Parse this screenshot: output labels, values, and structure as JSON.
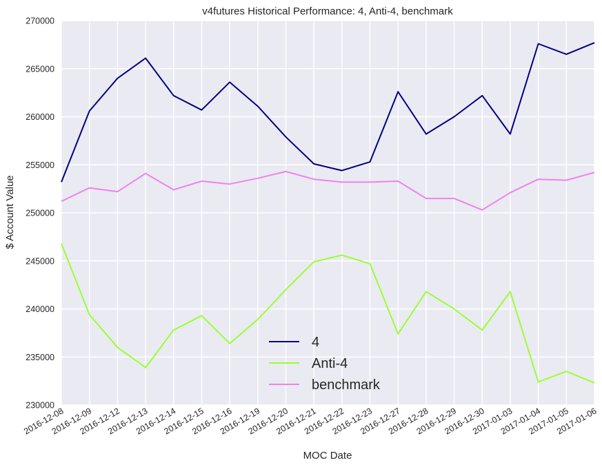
{
  "chart_data": {
    "type": "line",
    "title": "v4futures Historical Performance: 4, Anti-4, benchmark",
    "xlabel": "MOC Date",
    "ylabel": "$ Account Value",
    "ylim": [
      230000,
      270000
    ],
    "y_ticks": [
      "230000",
      "235000",
      "240000",
      "245000",
      "250000",
      "255000",
      "260000",
      "265000",
      "270000"
    ],
    "y_tick_values": [
      230000,
      235000,
      240000,
      245000,
      250000,
      255000,
      260000,
      265000,
      270000
    ],
    "categories": [
      "2016-12-08",
      "2016-12-09",
      "2016-12-12",
      "2016-12-13",
      "2016-12-14",
      "2016-12-15",
      "2016-12-16",
      "2016-12-19",
      "2016-12-20",
      "2016-12-21",
      "2016-12-22",
      "2016-12-23",
      "2016-12-27",
      "2016-12-28",
      "2016-12-29",
      "2016-12-30",
      "2017-01-03",
      "2017-01-04",
      "2017-01-05",
      "2017-01-06"
    ],
    "grid": true,
    "legend_position": "lower-center",
    "background_color": "#EAEAF2",
    "series": [
      {
        "name": "4",
        "color": "#000080",
        "values": [
          253200,
          260600,
          264000,
          266100,
          262200,
          260700,
          263600,
          261100,
          257900,
          255100,
          254400,
          255300,
          262600,
          258200,
          260000,
          262200,
          258200,
          267600,
          266500,
          267700
        ]
      },
      {
        "name": "Anti-4",
        "color": "#9AFF2F",
        "values": [
          246800,
          239400,
          236000,
          233900,
          237800,
          239300,
          236400,
          238900,
          242000,
          244900,
          245600,
          244700,
          237400,
          241800,
          240000,
          237800,
          241800,
          232400,
          233500,
          232300
        ]
      },
      {
        "name": "benchmark",
        "color": "#EE82EE",
        "values": [
          251200,
          252600,
          252200,
          254100,
          252400,
          253300,
          253000,
          253600,
          254300,
          253500,
          253200,
          253200,
          253300,
          251500,
          251500,
          250300,
          252100,
          253500,
          253400,
          254200
        ]
      }
    ]
  }
}
